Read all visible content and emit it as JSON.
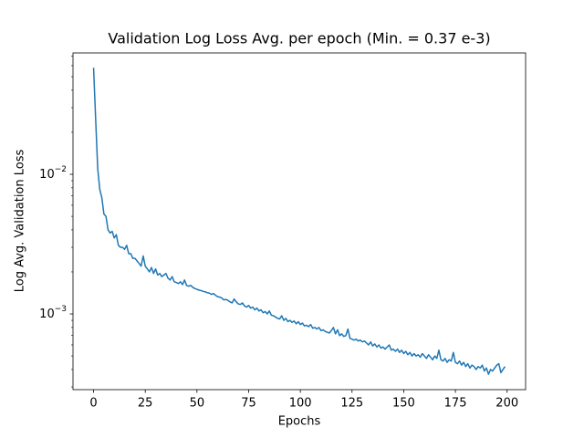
{
  "chart_data": {
    "type": "line",
    "title": "Validation Log Loss Avg. per epoch (Min. =  0.37 e-3)",
    "xlabel": "Epochs",
    "ylabel": "Log Avg. Validation Loss",
    "ylog": true,
    "grid": false,
    "xlim": [
      -9.95,
      208.95
    ],
    "xticks": [
      0,
      25,
      50,
      75,
      100,
      125,
      150,
      175,
      200
    ],
    "ylim": [
      0.000287,
      0.074
    ],
    "yticks": [
      {
        "value": 0.001,
        "label": "10−3"
      },
      {
        "value": 0.01,
        "label": "10−2"
      }
    ],
    "yminorticks": [
      0.0003,
      0.0004,
      0.0005,
      0.0006,
      0.0007,
      0.0008,
      0.0009,
      0.002,
      0.003,
      0.004,
      0.005,
      0.006,
      0.007,
      0.008,
      0.009,
      0.02,
      0.03,
      0.04,
      0.05,
      0.06,
      0.07
    ],
    "x": [
      0,
      1,
      2,
      3,
      4,
      5,
      6,
      7,
      8,
      9,
      10,
      11,
      12,
      13,
      14,
      15,
      16,
      17,
      18,
      19,
      20,
      21,
      22,
      23,
      24,
      25,
      26,
      27,
      28,
      29,
      30,
      31,
      32,
      33,
      34,
      35,
      36,
      37,
      38,
      39,
      40,
      41,
      42,
      43,
      44,
      45,
      46,
      47,
      48,
      49,
      50,
      51,
      52,
      53,
      54,
      55,
      56,
      57,
      58,
      59,
      60,
      61,
      62,
      63,
      64,
      65,
      66,
      67,
      68,
      69,
      70,
      71,
      72,
      73,
      74,
      75,
      76,
      77,
      78,
      79,
      80,
      81,
      82,
      83,
      84,
      85,
      86,
      87,
      88,
      89,
      90,
      91,
      92,
      93,
      94,
      95,
      96,
      97,
      98,
      99,
      100,
      101,
      102,
      103,
      104,
      105,
      106,
      107,
      108,
      109,
      110,
      111,
      112,
      113,
      114,
      115,
      116,
      117,
      118,
      119,
      120,
      121,
      122,
      123,
      124,
      125,
      126,
      127,
      128,
      129,
      130,
      131,
      132,
      133,
      134,
      135,
      136,
      137,
      138,
      139,
      140,
      141,
      142,
      143,
      144,
      145,
      146,
      147,
      148,
      149,
      150,
      151,
      152,
      153,
      154,
      155,
      156,
      157,
      158,
      159,
      160,
      161,
      162,
      163,
      164,
      165,
      166,
      167,
      168,
      169,
      170,
      171,
      172,
      173,
      174,
      175,
      176,
      177,
      178,
      179,
      180,
      181,
      182,
      183,
      184,
      185,
      186,
      187,
      188,
      189,
      190,
      191,
      192,
      193,
      194,
      195,
      196,
      197,
      198,
      199
    ],
    "series": [
      {
        "color": "#1f77b4",
        "values": [
          0.058,
          0.025,
          0.011,
          0.0078,
          0.0068,
          0.0052,
          0.005,
          0.004,
          0.0038,
          0.0039,
          0.0035,
          0.0037,
          0.0031,
          0.003,
          0.003,
          0.0029,
          0.0031,
          0.0027,
          0.0027,
          0.0025,
          0.0025,
          0.0024,
          0.0023,
          0.0022,
          0.0026,
          0.0022,
          0.0021,
          0.002,
          0.00215,
          0.00195,
          0.0021,
          0.0019,
          0.00195,
          0.00185,
          0.0019,
          0.00195,
          0.0018,
          0.00175,
          0.00185,
          0.0017,
          0.00168,
          0.00165,
          0.0017,
          0.00162,
          0.00175,
          0.0016,
          0.00158,
          0.0016,
          0.00155,
          0.00152,
          0.0015,
          0.00148,
          0.00147,
          0.00145,
          0.00144,
          0.00142,
          0.00141,
          0.00138,
          0.0014,
          0.00136,
          0.00133,
          0.00132,
          0.0013,
          0.00126,
          0.00127,
          0.00125,
          0.00122,
          0.0012,
          0.00128,
          0.00122,
          0.00118,
          0.00117,
          0.0012,
          0.00114,
          0.00112,
          0.00115,
          0.0011,
          0.00112,
          0.00107,
          0.0011,
          0.00105,
          0.00107,
          0.00102,
          0.00104,
          0.001,
          0.00105,
          0.00098,
          0.00097,
          0.00095,
          0.00093,
          0.00092,
          0.00097,
          0.0009,
          0.00093,
          0.00088,
          0.0009,
          0.00087,
          0.00089,
          0.00085,
          0.00088,
          0.00084,
          0.00086,
          0.00082,
          0.00083,
          0.00081,
          0.00084,
          0.00079,
          0.0008,
          0.00078,
          0.0008,
          0.00076,
          0.00077,
          0.00075,
          0.00074,
          0.00073,
          0.00076,
          0.0008,
          0.00072,
          0.00077,
          0.0007,
          0.00072,
          0.00069,
          0.0007,
          0.00078,
          0.00067,
          0.00066,
          0.00065,
          0.00066,
          0.00064,
          0.00065,
          0.00063,
          0.00064,
          0.00062,
          0.0006,
          0.00063,
          0.00059,
          0.00061,
          0.00058,
          0.0006,
          0.00057,
          0.00058,
          0.00056,
          0.00058,
          0.0006,
          0.00055,
          0.00056,
          0.00054,
          0.00056,
          0.00053,
          0.00055,
          0.00052,
          0.00054,
          0.00051,
          0.00053,
          0.0005,
          0.00052,
          0.0005,
          0.00051,
          0.00049,
          0.00052,
          0.0005,
          0.00048,
          0.00051,
          0.00049,
          0.00047,
          0.0005,
          0.00048,
          0.00055,
          0.00047,
          0.00046,
          0.00048,
          0.00045,
          0.00047,
          0.00046,
          0.00053,
          0.00045,
          0.00044,
          0.00046,
          0.00043,
          0.00045,
          0.00042,
          0.00044,
          0.00041,
          0.00043,
          0.00042,
          0.0004,
          0.00042,
          0.00041,
          0.00043,
          0.00039,
          0.00041,
          0.00037,
          0.0004,
          0.00039,
          0.00041,
          0.00043,
          0.00044,
          0.00038,
          0.0004,
          0.00042
        ]
      }
    ]
  }
}
